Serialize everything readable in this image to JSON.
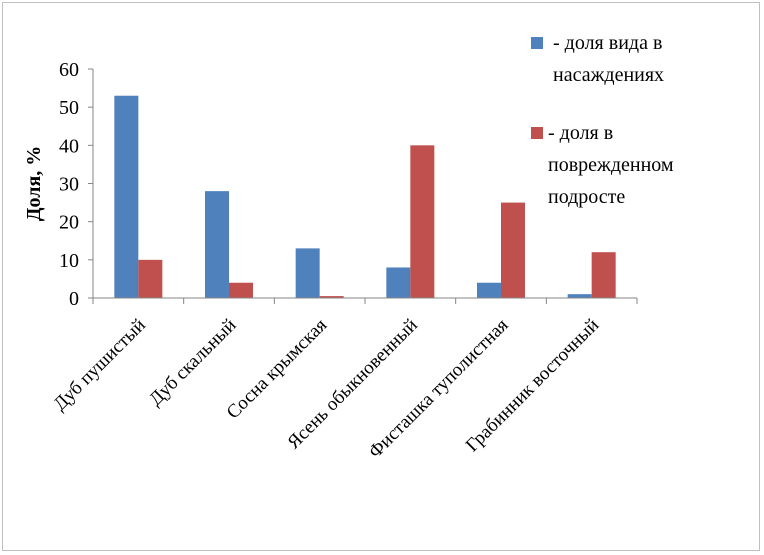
{
  "chart_data": {
    "type": "bar",
    "title": "",
    "xlabel": "",
    "ylabel": "Доля, %",
    "ylim": [
      0,
      60
    ],
    "yticks": [
      0,
      10,
      20,
      30,
      40,
      50,
      60
    ],
    "grid": false,
    "legend_position": "top-right",
    "categories": [
      "Дуб пушистый",
      "Дуб скальный",
      "Сосна крымская",
      "Ясень обыкновенный",
      "Фисташка туполистная",
      "Грабинник восточный"
    ],
    "series": [
      {
        "name": "- доля вида в насаждениях",
        "name_lines": [
          "- доля вида в",
          "насаждениях"
        ],
        "color": "#4f81bd",
        "values": [
          53,
          28,
          13,
          8,
          4,
          1
        ]
      },
      {
        "name": "- доля в поврежденном подросте",
        "name_lines": [
          "- доля в",
          "поврежденном",
          "подросте"
        ],
        "color": "#c0504d",
        "values": [
          10,
          4,
          0.5,
          40,
          25,
          12
        ]
      }
    ]
  }
}
